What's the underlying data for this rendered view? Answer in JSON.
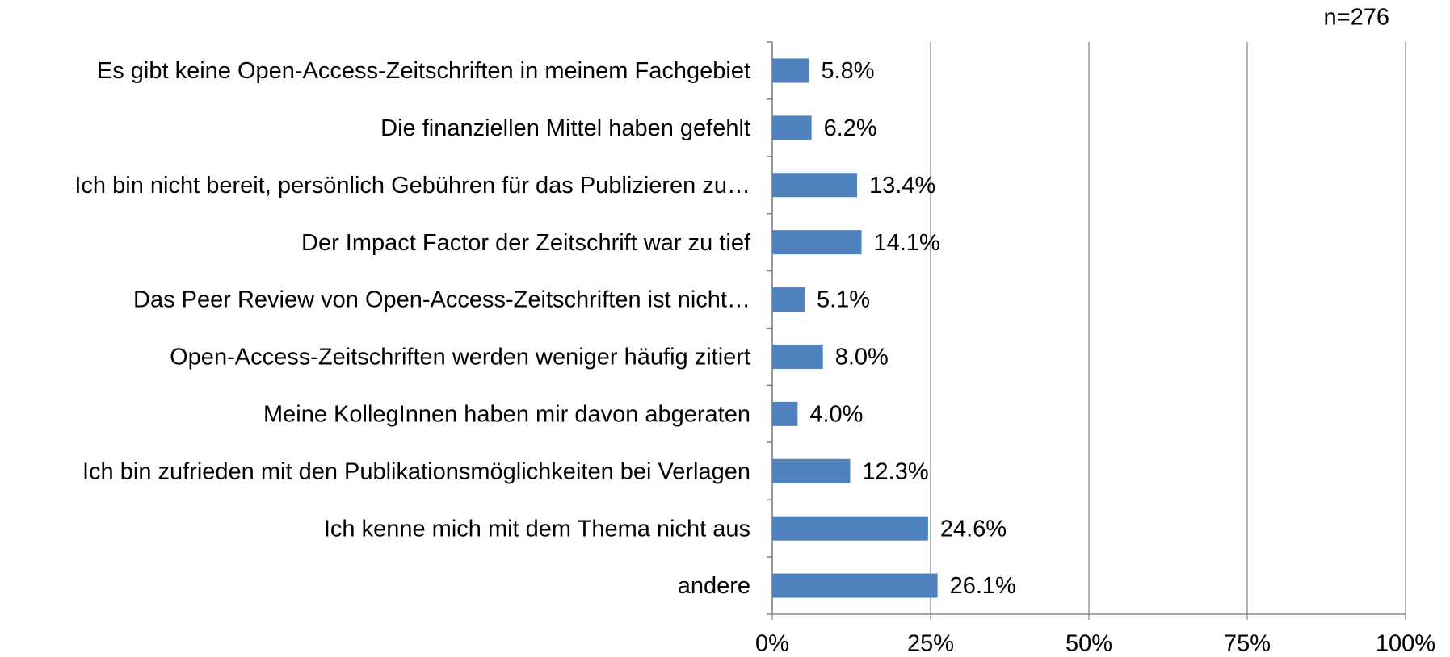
{
  "chart_data": {
    "type": "bar",
    "orientation": "horizontal",
    "annotation": "n=276",
    "categories": [
      "Es gibt keine Open-Access-Zeitschriften in meinem Fachgebiet",
      "Die finanziellen Mittel haben gefehlt",
      "Ich bin nicht bereit, persönlich Gebühren für das Publizieren zu…",
      "Der Impact Factor der Zeitschrift war zu tief",
      "Das Peer Review von Open-Access-Zeitschriften ist nicht…",
      "Open-Access-Zeitschriften werden weniger häufig zitiert",
      "Meine KollegInnen haben mir davon abgeraten",
      "Ich bin zufrieden mit den Publikationsmöglichkeiten bei Verlagen",
      "Ich kenne mich mit dem Thema nicht aus",
      "andere"
    ],
    "values": [
      5.8,
      6.2,
      13.4,
      14.1,
      5.1,
      8.0,
      4.0,
      12.3,
      24.6,
      26.1
    ],
    "value_labels": [
      "5.8%",
      "6.2%",
      "13.4%",
      "14.1%",
      "5.1%",
      "8.0%",
      "4.0%",
      "12.3%",
      "24.6%",
      "26.1%"
    ],
    "color": "#4f81bd",
    "xlim": [
      0,
      100
    ],
    "xticks": [
      {
        "value": 0,
        "label": "0%"
      },
      {
        "value": 25,
        "label": "25%"
      },
      {
        "value": 50,
        "label": "50%"
      },
      {
        "value": 75,
        "label": "75%"
      },
      {
        "value": 100,
        "label": "100%"
      }
    ],
    "grid": true
  }
}
